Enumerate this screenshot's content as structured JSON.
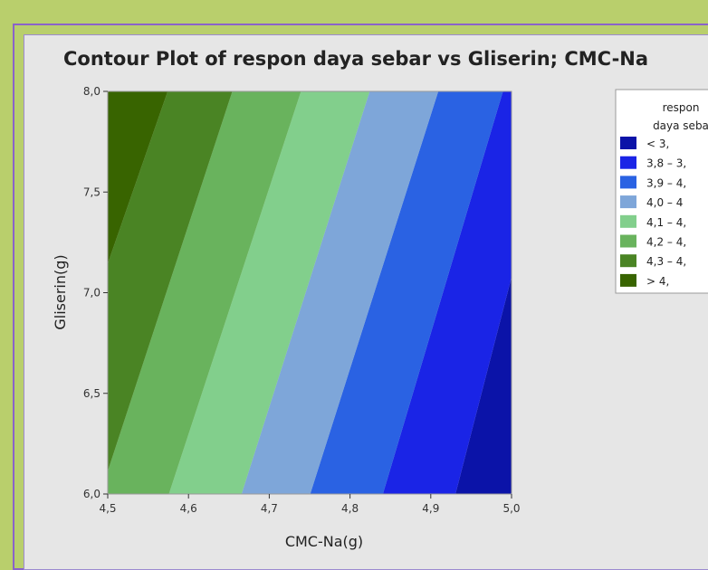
{
  "chart_data": {
    "type": "contour",
    "title": "Contour Plot of respon daya sebar vs Gliserin; CMC-Na",
    "xlabel": "CMC-Na(g)",
    "ylabel": "Gliserin(g)",
    "xlim": [
      4.5,
      5.0
    ],
    "ylim": [
      6.0,
      8.0
    ],
    "x_ticks": [
      "4,5",
      "4,6",
      "4,7",
      "4,8",
      "4,9",
      "5,0"
    ],
    "x_tick_values": [
      4.5,
      4.6,
      4.7,
      4.8,
      4.9,
      5.0
    ],
    "y_ticks": [
      "6,0",
      "6,5",
      "7,0",
      "7,5",
      "8,0"
    ],
    "y_tick_values": [
      6.0,
      6.5,
      7.0,
      7.5,
      8.0
    ],
    "contour_boundaries": [
      {
        "level": 3.8,
        "bottom_x": 4.93,
        "top_x": 5.06
      },
      {
        "level": 3.9,
        "bottom_x": 4.84,
        "top_x": 4.99
      },
      {
        "level": 4.0,
        "bottom_x": 4.75,
        "top_x": 4.91
      },
      {
        "level": 4.1,
        "bottom_x": 4.665,
        "top_x": 4.825
      },
      {
        "level": 4.2,
        "bottom_x": 4.575,
        "top_x": 4.74
      },
      {
        "level": 4.3,
        "bottom_x": 4.49,
        "top_x": 4.655
      },
      {
        "level": 4.4,
        "bottom_x": 4.4,
        "top_x": 4.575
      }
    ],
    "legend": {
      "title_lines": [
        "respon",
        "daya seba"
      ],
      "placement": "right",
      "entries": [
        {
          "label": "<   3,",
          "color": "#0b13a8"
        },
        {
          "label": "3,8  –   3,",
          "color": "#1a24e6"
        },
        {
          "label": "3,9  –   4,",
          "color": "#2a62e3"
        },
        {
          "label": "4,0  –   4",
          "color": "#7ea6d9"
        },
        {
          "label": "4,1  –   4,",
          "color": "#82cf8c"
        },
        {
          "label": "4,2  –   4,",
          "color": "#69b35d"
        },
        {
          "label": "4,3  –   4,",
          "color": "#4a8424"
        },
        {
          "label": ">   4,",
          "color": "#386400"
        }
      ]
    }
  }
}
